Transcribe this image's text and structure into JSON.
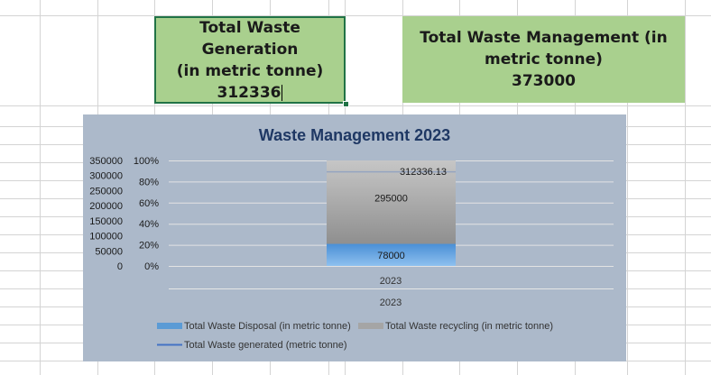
{
  "cards": [
    {
      "line1": "Total Waste Generation",
      "line2": "(in metric tonne)",
      "value": "312336"
    },
    {
      "line1": "Total Waste Management (in",
      "line2": "metric tonne)",
      "value": "373000"
    }
  ],
  "chart_data": {
    "type": "bar",
    "stacking": "percent",
    "title": "Waste Management 2023",
    "categories": [
      "2023"
    ],
    "category_group_label": "2023",
    "primary_axis_ticks": [
      "0%",
      "20%",
      "40%",
      "60%",
      "80%",
      "100%"
    ],
    "secondary_axis_ticks": [
      "0",
      "50000",
      "100000",
      "150000",
      "200000",
      "250000",
      "300000",
      "350000"
    ],
    "secondary_ylim": [
      0,
      350000
    ],
    "series": [
      {
        "name": "Total Waste Disposal (in metric tonne)",
        "values": [
          78000
        ],
        "color": "#5b9bd5"
      },
      {
        "name": "Total Waste recycling (in metric tonne)",
        "values": [
          295000
        ],
        "color": "#a5a5a5"
      },
      {
        "name": "Total Waste generated (metric tonne)",
        "values": [
          312336.13
        ],
        "color": "#4472c4",
        "kind": "line"
      }
    ],
    "data_labels": [
      "78000",
      "295000",
      "312336.13"
    ],
    "legend_position": "bottom",
    "colors": {
      "background": "#acb9ca",
      "title": "#1f3864",
      "grid": "#d9d9d9"
    }
  }
}
